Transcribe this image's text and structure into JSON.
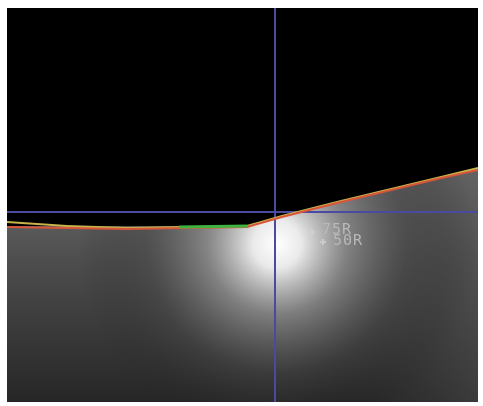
{
  "screen": {
    "background_color": "#000000",
    "crosshair_color": "#4a4aa0",
    "light_color": "#ffffff",
    "cutoff_line_colors": {
      "yellow": "#c8b24a",
      "red": "#d8553a",
      "green": "#3fb33f"
    }
  },
  "labels": {
    "point_75r": "75R",
    "point_50r": "50R"
  },
  "markers": {
    "point_75r_icon": "cross-marker",
    "point_50r_icon": "cross-marker"
  }
}
